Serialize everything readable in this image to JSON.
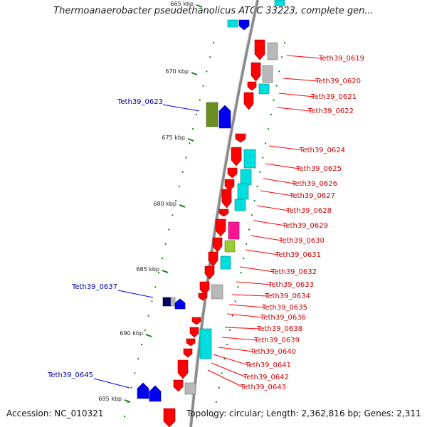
{
  "title": "Thermoanaerobacter pseudethanolicus ATCC 33223, complete gen...",
  "footer": {
    "accession": "Accession: NC_010321",
    "topology": "Topology: circular; Length: 2,362,816 bp; Genes: 2,311"
  },
  "colors": {
    "backbone": "#8a8a8a",
    "red": "#ff0000",
    "blue": "#0000ee",
    "cyan": "#00dddd",
    "gray": "#b8b8b8",
    "olive": "#6b8e23",
    "magenta": "#ff1493",
    "lime": "#9acd32",
    "navy": "#000066",
    "tick": "#1a7a1a",
    "label_red": "#cc0000",
    "label_blue": "#0000aa"
  },
  "kbp_ticks": [
    "665 kbp",
    "670 kbp",
    "675 kbp",
    "680 kbp",
    "685 kbp",
    "690 kbp",
    "695 kbp"
  ],
  "right_labels": [
    "Teth39_0619",
    "Teth39_0620",
    "Teth39_0621",
    "Teth39_0622",
    "Teth39_0624",
    "Teth39_0625",
    "Teth39_0626",
    "Teth39_0627",
    "Teth39_0628",
    "Teth39_0629",
    "Teth39_0630",
    "Teth39_0631",
    "Teth39_0632",
    "Teth39_0633",
    "Teth39_0634",
    "Teth39_0635",
    "Teth39_0636",
    "Teth39_0638",
    "Teth39_0639",
    "Teth39_0640",
    "Teth39_0641",
    "Teth39_0642",
    "Teth39_0643"
  ],
  "left_labels": [
    "Teth39_0623",
    "Teth39_0637",
    "Teth39_0645"
  ]
}
